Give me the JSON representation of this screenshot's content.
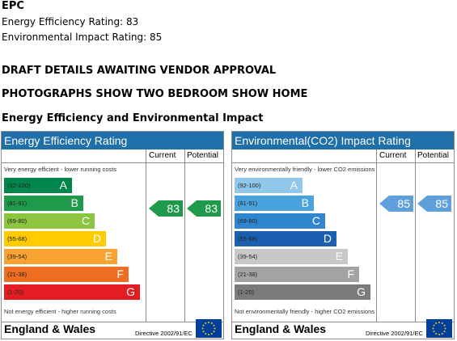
{
  "header": {
    "epc": "EPC",
    "energy_efficiency_line": "Energy Efficiency Rating: 83",
    "environmental_impact_line": "Environmental Impact Rating: 85",
    "draft_notice": "DRAFT DETAILS AWAITING VENDOR APPROVAL",
    "photo_notice": "PHOTOGRAPHS SHOW TWO BEDROOM SHOW HOME",
    "section_title": "Energy Efficiency and Environmental Impact"
  },
  "efficiency_chart": {
    "title": "Energy Efficiency Rating",
    "col_current": "Current",
    "col_potential": "Potential",
    "top_note": "Very energy efficient - lower running costs",
    "bottom_note": "Not energy efficient - higher running costs",
    "bands": [
      {
        "range": "(92-100)",
        "letter": "A",
        "color": "#00854a"
      },
      {
        "range": "(81-91)",
        "letter": "B",
        "color": "#1f9a4b"
      },
      {
        "range": "(69-80)",
        "letter": "C",
        "color": "#8cc63f"
      },
      {
        "range": "(55-68)",
        "letter": "D",
        "color": "#ffcc00"
      },
      {
        "range": "(39-54)",
        "letter": "E",
        "color": "#f7a233"
      },
      {
        "range": "(21-38)",
        "letter": "F",
        "color": "#ef6e21"
      },
      {
        "range": "(1-20)",
        "letter": "G",
        "color": "#e31d23"
      }
    ],
    "current": "83",
    "potential": "83",
    "arrow_color": "#1f9a4b",
    "footer": "England & Wales",
    "directive": "Directive 2002/91/EC"
  },
  "impact_chart": {
    "title": "Environmental(CO2) Impact Rating",
    "col_current": "Current",
    "col_potential": "Potential",
    "top_note": "Very environmentally friendly - lower CO2 emissions",
    "bottom_note": "Not environmentally friendly - higher CO2 emissions",
    "bands": [
      {
        "range": "(92-100)",
        "letter": "A",
        "color": "#8fc8ea"
      },
      {
        "range": "(81-91)",
        "letter": "B",
        "color": "#4ba3dd"
      },
      {
        "range": "(69-80)",
        "letter": "C",
        "color": "#2f86cf"
      },
      {
        "range": "(55-68)",
        "letter": "D",
        "color": "#1b5fb0"
      },
      {
        "range": "(39-54)",
        "letter": "E",
        "color": "#c8c8c8"
      },
      {
        "range": "(21-38)",
        "letter": "F",
        "color": "#a3a3a3"
      },
      {
        "range": "(1-20)",
        "letter": "G",
        "color": "#7b7b7b"
      }
    ],
    "current": "85",
    "potential": "85",
    "arrow_color": "#5fa0dc",
    "footer": "England & Wales",
    "directive": "Directive 2002/91/EC"
  }
}
